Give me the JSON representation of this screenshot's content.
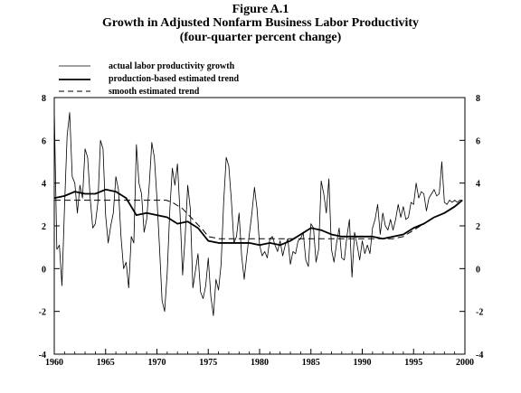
{
  "figure": {
    "number": "Figure A.1",
    "title": "Growth in Adjusted Nonfarm Business Labor Productivity",
    "subtitle": "(four-quarter percent change)"
  },
  "chart_data": {
    "type": "line",
    "title": "Growth in Adjusted Nonfarm Business Labor Productivity",
    "subtitle": "(four-quarter percent change)",
    "xlim": [
      1960,
      2000
    ],
    "ylim": [
      -4,
      8
    ],
    "x_ticks": [
      1960,
      1965,
      1970,
      1975,
      1980,
      1985,
      1990,
      1995,
      2000
    ],
    "y_ticks": [
      -4,
      -2,
      0,
      2,
      4,
      6,
      8
    ],
    "grid": false,
    "legend_position": "top-left",
    "series": [
      {
        "name": "actual labor productivity growth",
        "style": "thin-solid",
        "x": [
          1960.0,
          1960.25,
          1960.5,
          1960.75,
          1961.0,
          1961.25,
          1961.5,
          1961.75,
          1962.0,
          1962.25,
          1962.5,
          1962.75,
          1963.0,
          1963.25,
          1963.5,
          1963.75,
          1964.0,
          1964.25,
          1964.5,
          1964.75,
          1965.0,
          1965.25,
          1965.5,
          1965.75,
          1966.0,
          1966.25,
          1966.5,
          1966.75,
          1967.0,
          1967.25,
          1967.5,
          1967.75,
          1968.0,
          1968.25,
          1968.5,
          1968.75,
          1969.0,
          1969.25,
          1969.5,
          1969.75,
          1970.0,
          1970.25,
          1970.5,
          1970.75,
          1971.0,
          1971.25,
          1971.5,
          1971.75,
          1972.0,
          1972.25,
          1972.5,
          1972.75,
          1973.0,
          1973.25,
          1973.5,
          1973.75,
          1974.0,
          1974.25,
          1974.5,
          1974.75,
          1975.0,
          1975.25,
          1975.5,
          1975.75,
          1976.0,
          1976.25,
          1976.5,
          1976.75,
          1977.0,
          1977.25,
          1977.5,
          1977.75,
          1978.0,
          1978.25,
          1978.5,
          1978.75,
          1979.0,
          1979.25,
          1979.5,
          1979.75,
          1980.0,
          1980.25,
          1980.5,
          1980.75,
          1981.0,
          1981.25,
          1981.5,
          1981.75,
          1982.0,
          1982.25,
          1982.5,
          1982.75,
          1983.0,
          1983.25,
          1983.5,
          1983.75,
          1984.0,
          1984.25,
          1984.5,
          1984.75,
          1985.0,
          1985.25,
          1985.5,
          1985.75,
          1986.0,
          1986.25,
          1986.5,
          1986.75,
          1987.0,
          1987.25,
          1987.5,
          1987.75,
          1988.0,
          1988.25,
          1988.5,
          1988.75,
          1989.0,
          1989.25,
          1989.5,
          1989.75,
          1990.0,
          1990.25,
          1990.5,
          1990.75,
          1991.0,
          1991.25,
          1991.5,
          1991.75,
          1992.0,
          1992.25,
          1992.5,
          1992.75,
          1993.0,
          1993.25,
          1993.5,
          1993.75,
          1994.0,
          1994.25,
          1994.5,
          1994.75,
          1995.0,
          1995.25,
          1995.5,
          1995.75,
          1996.0,
          1996.25,
          1996.5,
          1996.75,
          1997.0,
          1997.25,
          1997.5,
          1997.75,
          1998.0,
          1998.25,
          1998.5,
          1998.75,
          1999.0,
          1999.25,
          1999.5,
          1999.75
        ],
        "y": [
          7.5,
          0.9,
          1.1,
          -0.8,
          2.9,
          6.2,
          7.3,
          4.3,
          4.0,
          2.6,
          3.9,
          3.3,
          5.6,
          5.2,
          3.3,
          1.9,
          2.1,
          3.1,
          6.0,
          5.6,
          2.5,
          1.2,
          2.0,
          2.6,
          4.3,
          3.7,
          1.5,
          0.0,
          0.3,
          -0.9,
          1.5,
          1.2,
          5.8,
          4.0,
          3.5,
          1.7,
          2.3,
          3.9,
          5.9,
          5.2,
          3.3,
          1.0,
          -1.5,
          -2.0,
          -0.2,
          2.7,
          4.7,
          3.9,
          4.9,
          2.6,
          -0.3,
          1.5,
          3.9,
          2.8,
          -0.9,
          -0.1,
          0.7,
          -1.1,
          -1.4,
          -0.8,
          0.5,
          -1.3,
          -2.2,
          -0.5,
          -1.0,
          0.2,
          3.1,
          5.2,
          4.8,
          3.2,
          1.2,
          1.5,
          2.6,
          0.6,
          -0.5,
          0.6,
          1.6,
          2.6,
          3.8,
          2.8,
          1.1,
          0.6,
          0.8,
          0.5,
          1.4,
          1.5,
          1.1,
          0.8,
          1.3,
          0.6,
          1.1,
          1.4,
          0.2,
          0.8,
          0.7,
          1.3,
          1.4,
          1.7,
          0.4,
          0.1,
          2.1,
          1.9,
          0.3,
          0.9,
          4.1,
          3.5,
          2.6,
          4.2,
          0.9,
          0.3,
          1.2,
          1.9,
          0.5,
          0.4,
          1.5,
          2.3,
          -0.4,
          1.7,
          1.1,
          0.4,
          1.3,
          0.7,
          1.1,
          0.7,
          1.9,
          2.3,
          3.0,
          1.6,
          2.6,
          2.0,
          1.8,
          2.3,
          1.8,
          2.3,
          3.0,
          2.4,
          2.9,
          2.3,
          2.4,
          3.1,
          3.0,
          4.0,
          3.3,
          3.6,
          3.5,
          2.7,
          3.3,
          3.5,
          3.7,
          3.4,
          3.5,
          5.0,
          3.1,
          3.0,
          3.2,
          3.1,
          3.2,
          3.1,
          3.2,
          3.2
        ]
      },
      {
        "name": "production-based estimated trend",
        "style": "thick-solid",
        "x": [
          1960,
          1961,
          1962,
          1963,
          1964,
          1965,
          1966,
          1967,
          1968,
          1969,
          1970,
          1971,
          1972,
          1973,
          1974,
          1975,
          1976,
          1977,
          1978,
          1979,
          1980,
          1981,
          1982,
          1983,
          1984,
          1985,
          1986,
          1987,
          1988,
          1989,
          1990,
          1991,
          1992,
          1993,
          1994,
          1995,
          1996,
          1997,
          1998,
          1999,
          1999.75
        ],
        "y": [
          3.3,
          3.4,
          3.6,
          3.5,
          3.5,
          3.7,
          3.6,
          3.3,
          2.5,
          2.6,
          2.5,
          2.4,
          2.1,
          2.2,
          1.9,
          1.3,
          1.2,
          1.2,
          1.2,
          1.2,
          1.1,
          1.2,
          1.1,
          1.3,
          1.6,
          1.9,
          1.8,
          1.6,
          1.5,
          1.5,
          1.5,
          1.5,
          1.4,
          1.5,
          1.6,
          1.9,
          2.1,
          2.4,
          2.6,
          2.9,
          3.2
        ]
      },
      {
        "name": "smooth estimated trend",
        "style": "dashed",
        "x": [
          1960,
          1970.9,
          1971.5,
          1972.5,
          1973.5,
          1974.5,
          1975,
          1976,
          1990,
          1991,
          1992,
          1993,
          1994,
          1995,
          1996,
          1997,
          1998,
          1999,
          1999.75
        ],
        "y": [
          3.2,
          3.2,
          3.1,
          2.8,
          2.3,
          1.8,
          1.5,
          1.4,
          1.4,
          1.4,
          1.4,
          1.4,
          1.5,
          1.8,
          2.1,
          2.4,
          2.6,
          2.9,
          3.2
        ]
      }
    ]
  }
}
